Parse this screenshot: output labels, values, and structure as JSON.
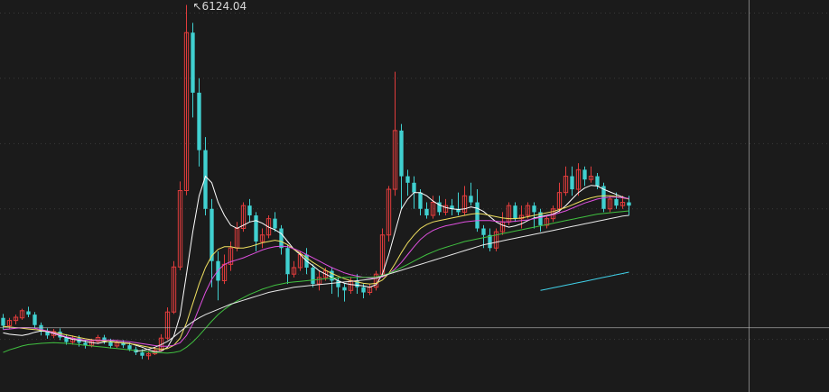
{
  "chart_data": {
    "type": "candlestick",
    "title": "",
    "xlabel": "",
    "ylabel": "",
    "ylim": [
      650,
      6200
    ],
    "grid": true,
    "annotations": [
      {
        "text": "↖6124.04",
        "value": 6124.04,
        "at_index": 29
      }
    ],
    "candles": [
      [
        1330,
        1210,
        1390,
        1150
      ],
      [
        1210,
        1290,
        1330,
        1160
      ],
      [
        1290,
        1340,
        1380,
        1230
      ],
      [
        1330,
        1440,
        1470,
        1300
      ],
      [
        1430,
        1380,
        1500,
        1340
      ],
      [
        1380,
        1220,
        1420,
        1170
      ],
      [
        1220,
        1120,
        1260,
        1060
      ],
      [
        1120,
        1060,
        1170,
        1010
      ],
      [
        1060,
        1120,
        1160,
        1020
      ],
      [
        1120,
        1030,
        1170,
        990
      ],
      [
        1030,
        960,
        1080,
        920
      ],
      [
        960,
        1020,
        1060,
        920
      ],
      [
        1020,
        950,
        1060,
        890
      ],
      [
        950,
        910,
        990,
        860
      ],
      [
        910,
        970,
        1010,
        880
      ],
      [
        970,
        1030,
        1070,
        930
      ],
      [
        1030,
        970,
        1070,
        930
      ],
      [
        970,
        900,
        1010,
        860
      ],
      [
        900,
        950,
        990,
        870
      ],
      [
        950,
        910,
        990,
        870
      ],
      [
        910,
        850,
        950,
        820
      ],
      [
        850,
        800,
        890,
        760
      ],
      [
        800,
        750,
        850,
        700
      ],
      [
        750,
        780,
        820,
        690
      ],
      [
        780,
        830,
        880,
        760
      ],
      [
        830,
        1020,
        1080,
        820
      ],
      [
        1020,
        1420,
        1490,
        990
      ],
      [
        1420,
        2110,
        2200,
        1390
      ],
      [
        2110,
        3280,
        3420,
        2060
      ],
      [
        3280,
        5700,
        6124.04,
        3210
      ],
      [
        5700,
        4780,
        5850,
        4400
      ],
      [
        4780,
        3900,
        5000,
        3650
      ],
      [
        3900,
        3000,
        4100,
        2900
      ],
      [
        3000,
        2200,
        3150,
        1800
      ],
      [
        2200,
        1900,
        2350,
        1600
      ],
      [
        1900,
        2150,
        2300,
        1850
      ],
      [
        2150,
        2400,
        2500,
        2050
      ],
      [
        2400,
        2700,
        2800,
        2350
      ],
      [
        2700,
        3050,
        3100,
        2650
      ],
      [
        3050,
        2900,
        3150,
        2800
      ],
      [
        2900,
        2500,
        2950,
        2350
      ],
      [
        2500,
        2600,
        2700,
        2400
      ],
      [
        2600,
        2850,
        2900,
        2550
      ],
      [
        2850,
        2700,
        2950,
        2650
      ],
      [
        2700,
        2400,
        2750,
        2300
      ],
      [
        2400,
        2000,
        2450,
        1850
      ],
      [
        2000,
        2100,
        2200,
        1950
      ],
      [
        2100,
        2300,
        2350,
        2050
      ],
      [
        2300,
        2100,
        2400,
        2000
      ],
      [
        2100,
        1850,
        2150,
        1800
      ],
      [
        1850,
        1950,
        2050,
        1750
      ],
      [
        1950,
        2050,
        2100,
        1900
      ],
      [
        2050,
        1900,
        2100,
        1700
      ],
      [
        1900,
        1800,
        1950,
        1650
      ],
      [
        1800,
        1750,
        1850,
        1580
      ],
      [
        1750,
        1900,
        1950,
        1700
      ],
      [
        1900,
        1800,
        2000,
        1700
      ],
      [
        1800,
        1720,
        1850,
        1630
      ],
      [
        1720,
        1800,
        1850,
        1680
      ],
      [
        1800,
        2000,
        2050,
        1750
      ],
      [
        2000,
        2600,
        2700,
        1950
      ],
      [
        2600,
        3300,
        3350,
        2500
      ],
      [
        3300,
        4200,
        5100,
        3200
      ],
      [
        4200,
        3500,
        4300,
        3000
      ],
      [
        3500,
        3400,
        3600,
        3200
      ],
      [
        3400,
        3250,
        3500,
        3000
      ],
      [
        3250,
        3000,
        3300,
        2900
      ],
      [
        3000,
        2900,
        3100,
        2850
      ],
      [
        2900,
        3100,
        3200,
        2850
      ],
      [
        3100,
        2950,
        3200,
        2900
      ],
      [
        2950,
        3050,
        3150,
        2900
      ],
      [
        3050,
        3000,
        3150,
        2900
      ],
      [
        3000,
        2950,
        3250,
        2900
      ],
      [
        2950,
        3200,
        3350,
        2900
      ],
      [
        3200,
        3100,
        3400,
        3050
      ],
      [
        3100,
        2700,
        3300,
        2650
      ],
      [
        2700,
        2600,
        2750,
        2400
      ],
      [
        2600,
        2400,
        2700,
        2350
      ],
      [
        2400,
        2650,
        2700,
        2350
      ],
      [
        2650,
        2800,
        2950,
        2600
      ],
      [
        2800,
        3050,
        3100,
        2750
      ],
      [
        3050,
        2850,
        3100,
        2800
      ],
      [
        2850,
        2900,
        3050,
        2700
      ],
      [
        2900,
        3050,
        3100,
        2850
      ],
      [
        3050,
        2950,
        3100,
        2700
      ],
      [
        2950,
        2750,
        3000,
        2650
      ],
      [
        2750,
        2850,
        2900,
        2700
      ],
      [
        2850,
        3000,
        3050,
        2800
      ],
      [
        3000,
        3250,
        3400,
        2950
      ],
      [
        3250,
        3500,
        3650,
        3200
      ],
      [
        3500,
        3300,
        3650,
        3200
      ],
      [
        3300,
        3600,
        3700,
        3200
      ],
      [
        3600,
        3450,
        3650,
        3350
      ],
      [
        3450,
        3500,
        3650,
        3400
      ],
      [
        3500,
        3350,
        3550,
        3300
      ],
      [
        3350,
        3000,
        3400,
        2950
      ],
      [
        3000,
        3150,
        3200,
        2950
      ],
      [
        3150,
        3050,
        3250,
        3000
      ],
      [
        3050,
        3100,
        3200,
        3000
      ],
      [
        3100,
        3050,
        3200,
        2900
      ]
    ],
    "series": [
      {
        "color": "#ffffff",
        "values": [
          1100,
          1080,
          1070,
          1060,
          1080,
          1110,
          1130,
          1120,
          1090,
          1060,
          1030,
          1000,
          990,
          970,
          950,
          940,
          960,
          970,
          960,
          950,
          940,
          910,
          880,
          840,
          810,
          820,
          880,
          1050,
          1370,
          2000,
          2650,
          3200,
          3500,
          3400,
          3100,
          2900,
          2750,
          2700,
          2750,
          2800,
          2820,
          2780,
          2720,
          2680,
          2620,
          2500,
          2380,
          2300,
          2200,
          2130,
          2050,
          2000,
          1950,
          1900,
          1860,
          1840,
          1830,
          1820,
          1800,
          1840,
          2000,
          2300,
          2650,
          3000,
          3150,
          3250,
          3250,
          3200,
          3120,
          3060,
          3020,
          3000,
          2990,
          3000,
          3030,
          3010,
          2960,
          2880,
          2800,
          2750,
          2720,
          2740,
          2770,
          2820,
          2860,
          2880,
          2900,
          2920,
          2970,
          3050,
          3150,
          3250,
          3320,
          3360,
          3350,
          3300,
          3260,
          3220,
          3180,
          3150
        ]
      },
      {
        "color": "#f0e060",
        "values": [
          1200,
          1190,
          1180,
          1170,
          1160,
          1150,
          1140,
          1130,
          1110,
          1090,
          1070,
          1050,
          1030,
          1010,
          995,
          985,
          975,
          965,
          955,
          945,
          935,
          920,
          900,
          880,
          860,
          850,
          860,
          910,
          1020,
          1250,
          1550,
          1850,
          2100,
          2280,
          2380,
          2420,
          2420,
          2400,
          2400,
          2420,
          2450,
          2480,
          2500,
          2520,
          2500,
          2450,
          2380,
          2320,
          2250,
          2180,
          2120,
          2060,
          2010,
          1970,
          1930,
          1900,
          1880,
          1860,
          1850,
          1860,
          1910,
          2010,
          2160,
          2330,
          2480,
          2600,
          2700,
          2760,
          2800,
          2820,
          2840,
          2860,
          2880,
          2900,
          2920,
          2930,
          2920,
          2900,
          2880,
          2860,
          2850,
          2850,
          2860,
          2880,
          2900,
          2920,
          2940,
          2960,
          2990,
          3020,
          3060,
          3100,
          3140,
          3170,
          3190,
          3200,
          3200,
          3190,
          3170,
          3150
        ]
      },
      {
        "color": "#e050e0",
        "values": [
          1150,
          1160,
          1170,
          1180,
          1180,
          1170,
          1150,
          1130,
          1100,
          1070,
          1040,
          1020,
          1000,
          990,
          985,
          985,
          990,
          990,
          985,
          975,
          965,
          950,
          935,
          920,
          905,
          895,
          895,
          910,
          950,
          1060,
          1240,
          1480,
          1720,
          1920,
          2060,
          2150,
          2190,
          2220,
          2250,
          2290,
          2330,
          2370,
          2400,
          2420,
          2430,
          2420,
          2390,
          2350,
          2300,
          2250,
          2200,
          2150,
          2100,
          2060,
          2020,
          1990,
          1970,
          1950,
          1940,
          1940,
          1960,
          2000,
          2080,
          2180,
          2300,
          2420,
          2530,
          2610,
          2670,
          2710,
          2740,
          2760,
          2780,
          2800,
          2810,
          2820,
          2820,
          2820,
          2810,
          2800,
          2800,
          2810,
          2820,
          2830,
          2850,
          2870,
          2890,
          2910,
          2940,
          2970,
          3010,
          3050,
          3090,
          3120,
          3150,
          3170,
          3180,
          3180,
          3170,
          3160
        ]
      },
      {
        "color": "#40c040",
        "values": [
          800,
          840,
          870,
          900,
          920,
          930,
          940,
          945,
          950,
          945,
          940,
          930,
          920,
          910,
          900,
          890,
          880,
          870,
          860,
          850,
          840,
          830,
          820,
          810,
          800,
          795,
          790,
          800,
          820,
          880,
          960,
          1060,
          1170,
          1280,
          1380,
          1460,
          1530,
          1590,
          1640,
          1690,
          1730,
          1770,
          1800,
          1830,
          1850,
          1870,
          1880,
          1890,
          1900,
          1910,
          1920,
          1930,
          1940,
          1945,
          1950,
          1950,
          1950,
          1950,
          1950,
          1960,
          1980,
          2010,
          2050,
          2100,
          2150,
          2200,
          2250,
          2300,
          2340,
          2380,
          2410,
          2440,
          2470,
          2500,
          2520,
          2540,
          2560,
          2580,
          2600,
          2620,
          2640,
          2660,
          2680,
          2700,
          2720,
          2740,
          2760,
          2780,
          2800,
          2820,
          2840,
          2860,
          2880,
          2900,
          2920,
          2930,
          2940,
          2950,
          2960,
          2970
        ]
      },
      {
        "color": "#e8e8e8",
        "values": [
          null,
          null,
          null,
          null,
          null,
          null,
          null,
          null,
          null,
          null,
          null,
          null,
          null,
          null,
          null,
          null,
          null,
          null,
          null,
          null,
          null,
          820,
          830,
          850,
          880,
          920,
          970,
          1040,
          1120,
          1200,
          1270,
          1330,
          1380,
          1420,
          1460,
          1500,
          1540,
          1570,
          1600,
          1630,
          1660,
          1690,
          1720,
          1740,
          1760,
          1780,
          1800,
          1810,
          1820,
          1830,
          1840,
          1850,
          1860,
          1870,
          1880,
          1890,
          1900,
          1910,
          1920,
          1940,
          1970,
          2000,
          2030,
          2060,
          2090,
          2120,
          2150,
          2180,
          2210,
          2240,
          2270,
          2300,
          2330,
          2360,
          2390,
          2420,
          2450,
          2470,
          2490,
          2510,
          2530,
          2550,
          2570,
          2590,
          2610,
          2630,
          2650,
          2670,
          2690,
          2710,
          2730,
          2750,
          2770,
          2790,
          2810,
          2830,
          2850,
          2870,
          2890,
          2900
        ]
      },
      {
        "color": "#40d0e8",
        "values": [
          null,
          null,
          null,
          null,
          null,
          null,
          null,
          null,
          null,
          null,
          null,
          null,
          null,
          null,
          null,
          null,
          null,
          null,
          null,
          null,
          null,
          null,
          null,
          null,
          null,
          null,
          null,
          null,
          null,
          null,
          null,
          null,
          null,
          null,
          null,
          null,
          null,
          null,
          null,
          null,
          null,
          null,
          null,
          null,
          null,
          null,
          null,
          null,
          null,
          null,
          null,
          null,
          null,
          null,
          null,
          null,
          null,
          null,
          null,
          null,
          null,
          null,
          null,
          null,
          null,
          null,
          null,
          null,
          null,
          null,
          null,
          null,
          null,
          null,
          null,
          null,
          null,
          null,
          null,
          null,
          null,
          null,
          null,
          null,
          null,
          1750,
          1770,
          1790,
          1810,
          1830,
          1850,
          1870,
          1890,
          1910,
          1930,
          1950,
          1970,
          1990,
          2010,
          2030
        ]
      }
    ],
    "colors": {
      "background": "#1b1b1b",
      "up": "#e03c3c",
      "down": "#40d0d0",
      "grid": "#3a3a3a",
      "crosshair": "#bdbdbd"
    },
    "crosshair": {
      "at_index": 118,
      "value": 1180
    }
  }
}
